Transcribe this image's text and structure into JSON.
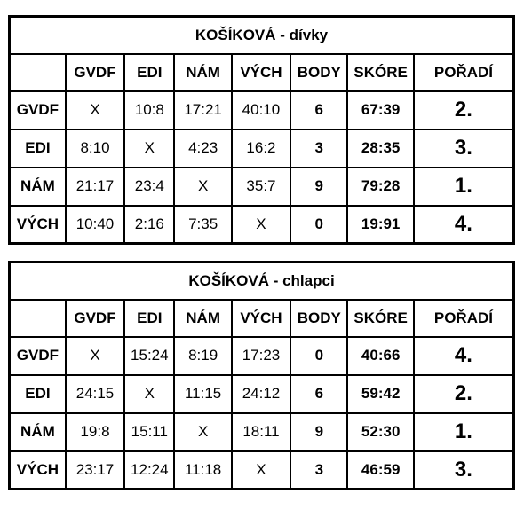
{
  "tables": [
    {
      "title": "KOŠÍKOVÁ - dívky",
      "headers": [
        "",
        "GVDF",
        "EDI",
        "NÁM",
        "VÝCH",
        "BODY",
        "SKÓRE",
        "POŘADÍ"
      ],
      "rows": [
        {
          "team": "GVDF",
          "cells": [
            "X",
            "10:8",
            "17:21",
            "40:10"
          ],
          "points": "6",
          "score": "67:39",
          "rank": "2."
        },
        {
          "team": "EDI",
          "cells": [
            "8:10",
            "X",
            "4:23",
            "16:2"
          ],
          "points": "3",
          "score": "28:35",
          "rank": "3."
        },
        {
          "team": "NÁM",
          "cells": [
            "21:17",
            "23:4",
            "X",
            "35:7"
          ],
          "points": "9",
          "score": "79:28",
          "rank": "1."
        },
        {
          "team": "VÝCH",
          "cells": [
            "10:40",
            "2:16",
            "7:35",
            "X"
          ],
          "points": "0",
          "score": "19:91",
          "rank": "4."
        }
      ]
    },
    {
      "title": "KOŠÍKOVÁ - chlapci",
      "headers": [
        "",
        "GVDF",
        "EDI",
        "NÁM",
        "VÝCH",
        "BODY",
        "SKÓRE",
        "POŘADÍ"
      ],
      "rows": [
        {
          "team": "GVDF",
          "cells": [
            "X",
            "15:24",
            "8:19",
            "17:23"
          ],
          "points": "0",
          "score": "40:66",
          "rank": "4."
        },
        {
          "team": "EDI",
          "cells": [
            "24:15",
            "X",
            "11:15",
            "24:12"
          ],
          "points": "6",
          "score": "59:42",
          "rank": "2."
        },
        {
          "team": "NÁM",
          "cells": [
            "19:8",
            "15:11",
            "X",
            "18:11"
          ],
          "points": "9",
          "score": "52:30",
          "rank": "1."
        },
        {
          "team": "VÝCH",
          "cells": [
            "23:17",
            "12:24",
            "11:18",
            "X"
          ],
          "points": "3",
          "score": "46:59",
          "rank": "3."
        }
      ]
    }
  ]
}
